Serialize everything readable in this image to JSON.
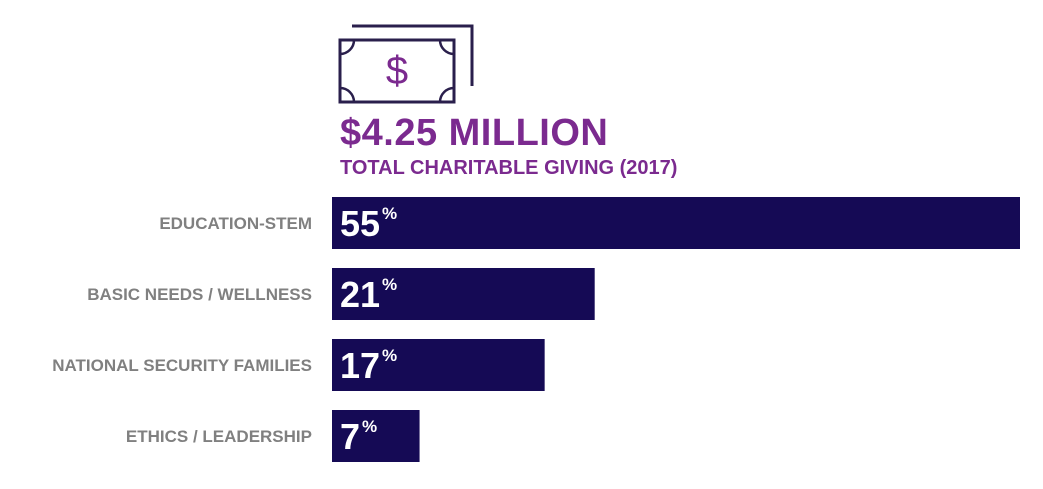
{
  "header": {
    "icon": "dollar-bill-icon",
    "currency_symbol": "$",
    "amount": "$4.25 MILLION",
    "subtitle": "TOTAL CHARITABLE GIVING (2017)"
  },
  "colors": {
    "bar": "#150a55",
    "accent": "#7b2a8f",
    "label": "#808080",
    "icon_outline": "#2a1f4c",
    "value_text": "#ffffff"
  },
  "chart_data": {
    "type": "bar",
    "orientation": "horizontal",
    "categories": [
      "EDUCATION-STEM",
      "BASIC NEEDS / WELLNESS",
      "NATIONAL SECURITY FAMILIES",
      "ETHICS / LEADERSHIP"
    ],
    "values": [
      55,
      21,
      17,
      7
    ],
    "value_labels": [
      "55",
      "21",
      "17",
      "7"
    ],
    "value_suffix": "%",
    "title": "",
    "xlabel": "",
    "ylabel": "",
    "xlim": [
      0,
      55
    ],
    "grid": false,
    "legend": "none"
  }
}
